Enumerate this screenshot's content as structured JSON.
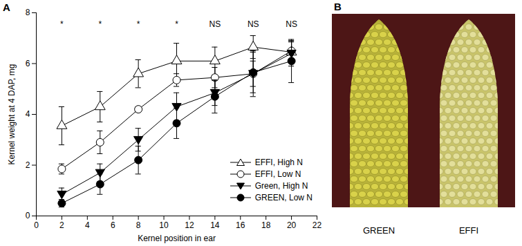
{
  "chart_data": {
    "type": "line",
    "panel": "A",
    "x_label": "Kernel position in ear",
    "y_label": "Kernel weight at 4 DAP, mg",
    "x": [
      2,
      5,
      8,
      11,
      14,
      17,
      20
    ],
    "xlim": [
      0,
      22
    ],
    "xticks": [
      0,
      2,
      4,
      6,
      8,
      10,
      12,
      14,
      16,
      18,
      20,
      22
    ],
    "ylim": [
      0,
      8
    ],
    "yticks": [
      0,
      2,
      4,
      6,
      8
    ],
    "grid": false,
    "legend": "lower right",
    "series": [
      {
        "name": "EFFI, High N",
        "color": "#000000",
        "marker": "open triangle",
        "line_style": "solid",
        "values": [
          3.55,
          4.3,
          5.6,
          6.1,
          6.1,
          6.65,
          6.45
        ],
        "errors": [
          0.75,
          0.6,
          0.55,
          0.7,
          0.55,
          0.45,
          0.4
        ]
      },
      {
        "name": "EFFI, Low N",
        "color": "#000000",
        "marker": "open circle",
        "line_style": "solid",
        "values": [
          1.85,
          2.9,
          4.2,
          5.35,
          5.45,
          5.6,
          6.5
        ],
        "errors": [
          0.2,
          0.45,
          0.1,
          0.25,
          0.4,
          0.9,
          0.4
        ]
      },
      {
        "name": "Green, High N",
        "color": "#000000",
        "marker": "filled triangle-down",
        "line_style": "solid",
        "values": [
          0.85,
          1.7,
          3.0,
          4.3,
          4.85,
          5.6,
          6.4
        ],
        "errors": [
          0.25,
          0.35,
          0.45,
          0.55,
          0.5,
          0.5,
          0.5
        ]
      },
      {
        "name": "GREEN, Low N",
        "color": "#000000",
        "marker": "filled circle",
        "line_style": "solid",
        "values": [
          0.5,
          1.25,
          2.2,
          3.65,
          4.7,
          5.65,
          6.1
        ],
        "errors": [
          0.15,
          0.4,
          0.55,
          0.6,
          0.65,
          0.8,
          0.85
        ]
      }
    ],
    "annotations": [
      {
        "x": 2,
        "text": "*"
      },
      {
        "x": 5,
        "text": "*"
      },
      {
        "x": 8,
        "text": "*"
      },
      {
        "x": 11,
        "text": "*"
      },
      {
        "x": 14,
        "text": "NS"
      },
      {
        "x": 17,
        "text": "NS"
      },
      {
        "x": 20,
        "text": "NS"
      }
    ]
  },
  "photo": {
    "panel": "B",
    "labels": [
      "GREEN",
      "EFFI"
    ]
  }
}
